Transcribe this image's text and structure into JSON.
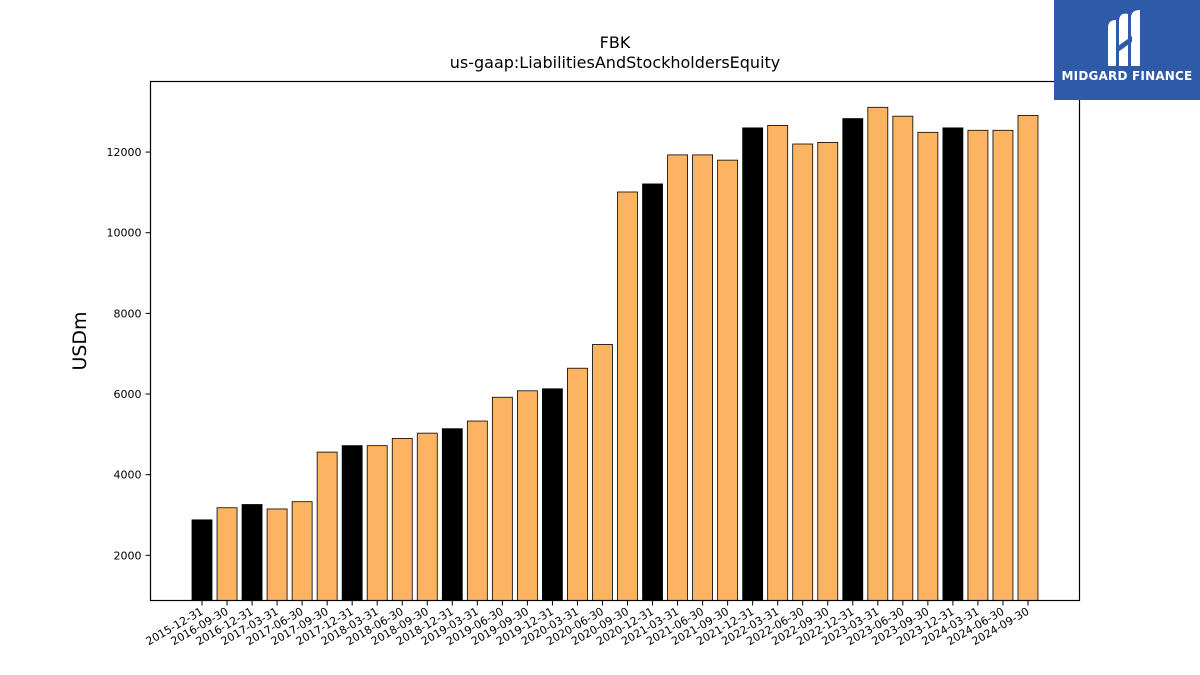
{
  "chart_data": {
    "type": "bar",
    "title": "FBK",
    "subtitle": "us-gaap:LiabilitiesAndStockholdersEquity",
    "ylabel": "USDm",
    "xlabel": "",
    "ylim": [
      880,
      13750
    ],
    "yticks": [
      2000,
      4000,
      6000,
      8000,
      10000,
      12000
    ],
    "grid": false,
    "colors": {
      "annual": "#000000",
      "quarterly": "#fdb462"
    },
    "categories": [
      "2015-12-31",
      "2016-09-30",
      "2016-12-31",
      "2017-03-31",
      "2017-06-30",
      "2017-09-30",
      "2017-12-31",
      "2018-03-31",
      "2018-06-30",
      "2018-09-30",
      "2018-12-31",
      "2019-03-31",
      "2019-06-30",
      "2019-09-30",
      "2019-12-31",
      "2020-03-31",
      "2020-06-30",
      "2020-09-30",
      "2020-12-31",
      "2021-03-31",
      "2021-06-30",
      "2021-09-30",
      "2021-12-31",
      "2022-03-31",
      "2022-06-30",
      "2022-09-30",
      "2022-12-31",
      "2023-03-31",
      "2023-06-30",
      "2023-09-30",
      "2023-12-31",
      "2024-03-31",
      "2024-06-30",
      "2024-09-30"
    ],
    "values": [
      2880,
      3180,
      3260,
      3150,
      3330,
      4560,
      4720,
      4720,
      4900,
      5030,
      5140,
      5330,
      5920,
      6080,
      6130,
      6640,
      7230,
      11010,
      11210,
      11930,
      11930,
      11800,
      12600,
      12660,
      12200,
      12240,
      12830,
      13110,
      12890,
      12490,
      12600,
      12540,
      12540,
      12910
    ],
    "annual_flags": [
      true,
      false,
      true,
      false,
      false,
      false,
      true,
      false,
      false,
      false,
      true,
      false,
      false,
      false,
      true,
      false,
      false,
      false,
      true,
      false,
      false,
      false,
      true,
      false,
      false,
      false,
      true,
      false,
      false,
      false,
      true,
      false,
      false,
      false
    ]
  },
  "logo": {
    "text": "MIDGARD FINANCE",
    "icon": "midgard-logo-icon",
    "background": "#2f5aa8"
  }
}
